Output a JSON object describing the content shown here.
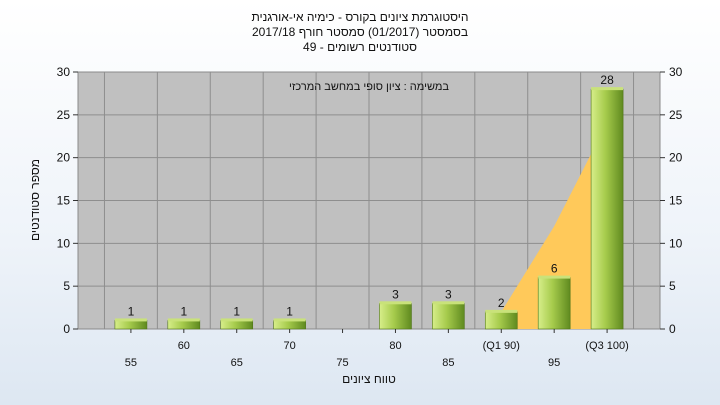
{
  "header": {
    "line1": "היסטוגרמת ציונים בקורס - כימיה אי-אורגנית",
    "line2": "בסמסטר  (01/2017)  סמסטר חורף 2017/18",
    "line3": "סטודנטים רשומים - 49"
  },
  "chart_data": {
    "type": "bar",
    "title": "היסטוגרמת ציונים בקורס - כימיה אי-אורגנית",
    "ylabel": "מספר סטודנטים",
    "xlabel": "טווח ציונים",
    "annotation": "במשימה : ציון סופי במחשב המרכזי",
    "ylim": [
      0,
      30
    ],
    "yticks": [
      0,
      5,
      10,
      15,
      20,
      25,
      30
    ],
    "categories": [
      "55",
      "60",
      "65",
      "70",
      "75",
      "80",
      "85",
      "(Q1 90)",
      "95",
      "(Q3 100)"
    ],
    "values": [
      1,
      1,
      1,
      1,
      0,
      3,
      3,
      2,
      6,
      28
    ],
    "value_labels": [
      "1",
      "1",
      "1",
      "1",
      "",
      "3",
      "3",
      "2",
      "6",
      "28"
    ],
    "grid": true,
    "colors": {
      "plot_bg": "#c0c0c0",
      "bar_light": "#d7ee8a",
      "bar_mid": "#a6cb4c",
      "bar_dark": "#5f8a1f",
      "area": "#ffc95a"
    }
  }
}
